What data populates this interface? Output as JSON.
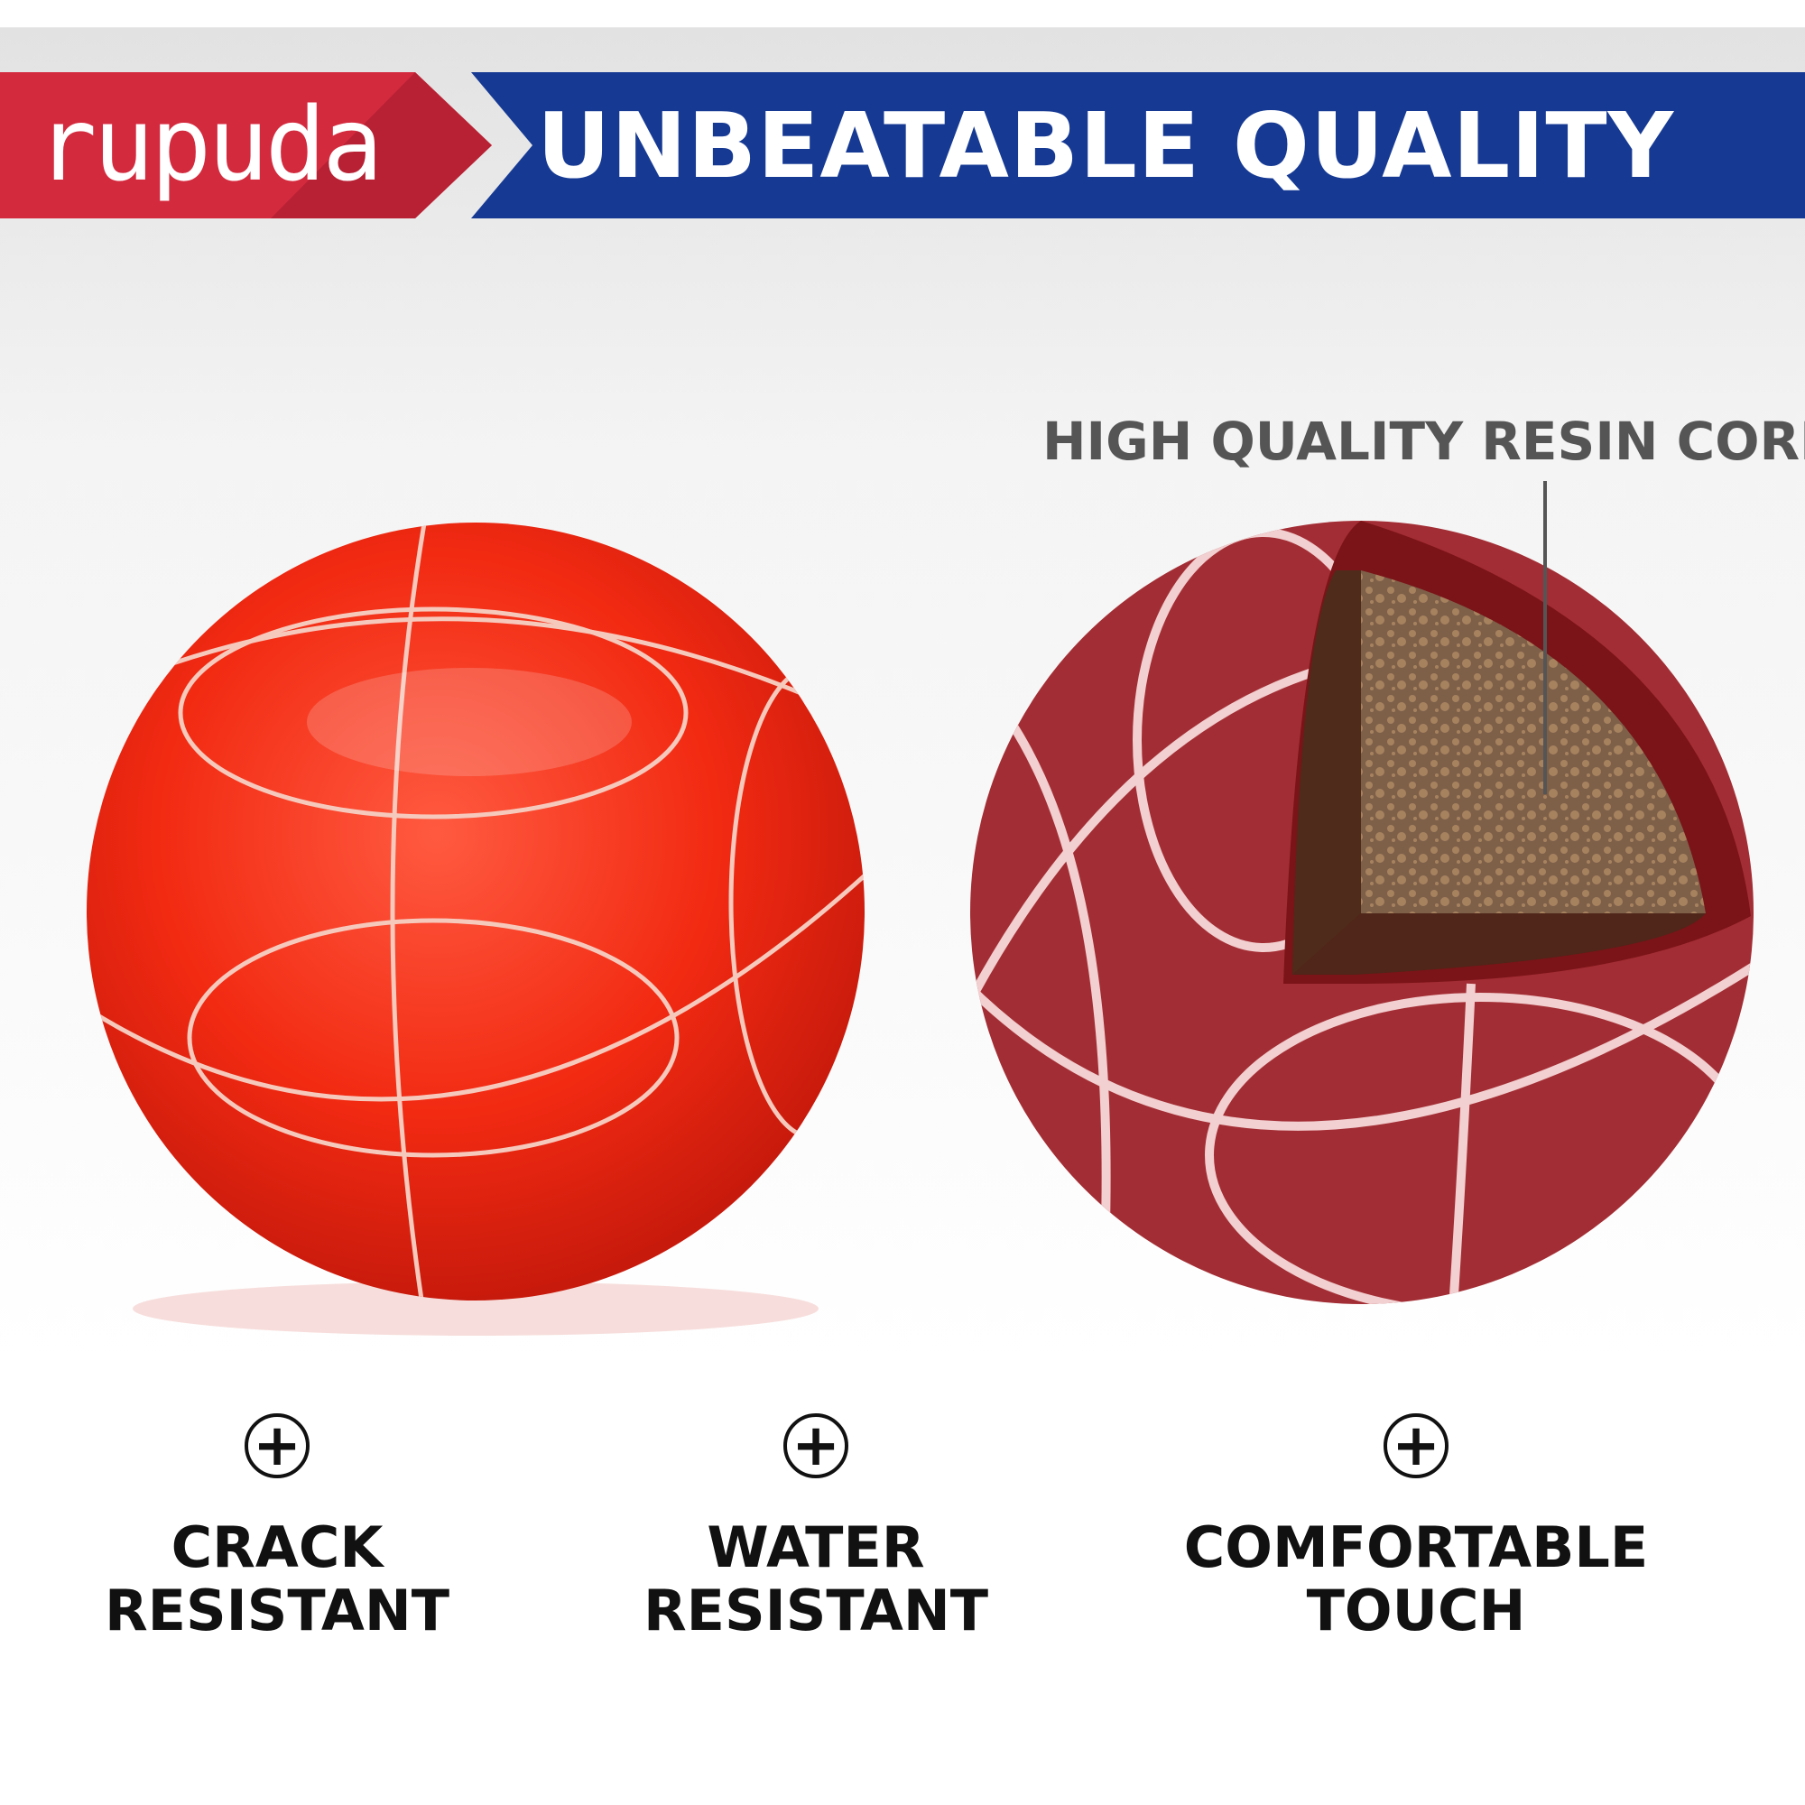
{
  "header": {
    "brand": "rupuda",
    "title": "UNBEATABLE QUALITY",
    "colors": {
      "brand_red": "#d42a3e",
      "banner_blue": "#163a94"
    }
  },
  "callout": {
    "label": "HIGH QUALITY RESIN CORE"
  },
  "features": [
    {
      "icon": "plus-circle-icon",
      "line1": "CRACK",
      "line2": "RESISTANT"
    },
    {
      "icon": "plus-circle-icon",
      "line1": "WATER",
      "line2": "RESISTANT"
    },
    {
      "icon": "plus-circle-icon",
      "line1": "COMFORTABLE",
      "line2": "TOUCH"
    }
  ]
}
